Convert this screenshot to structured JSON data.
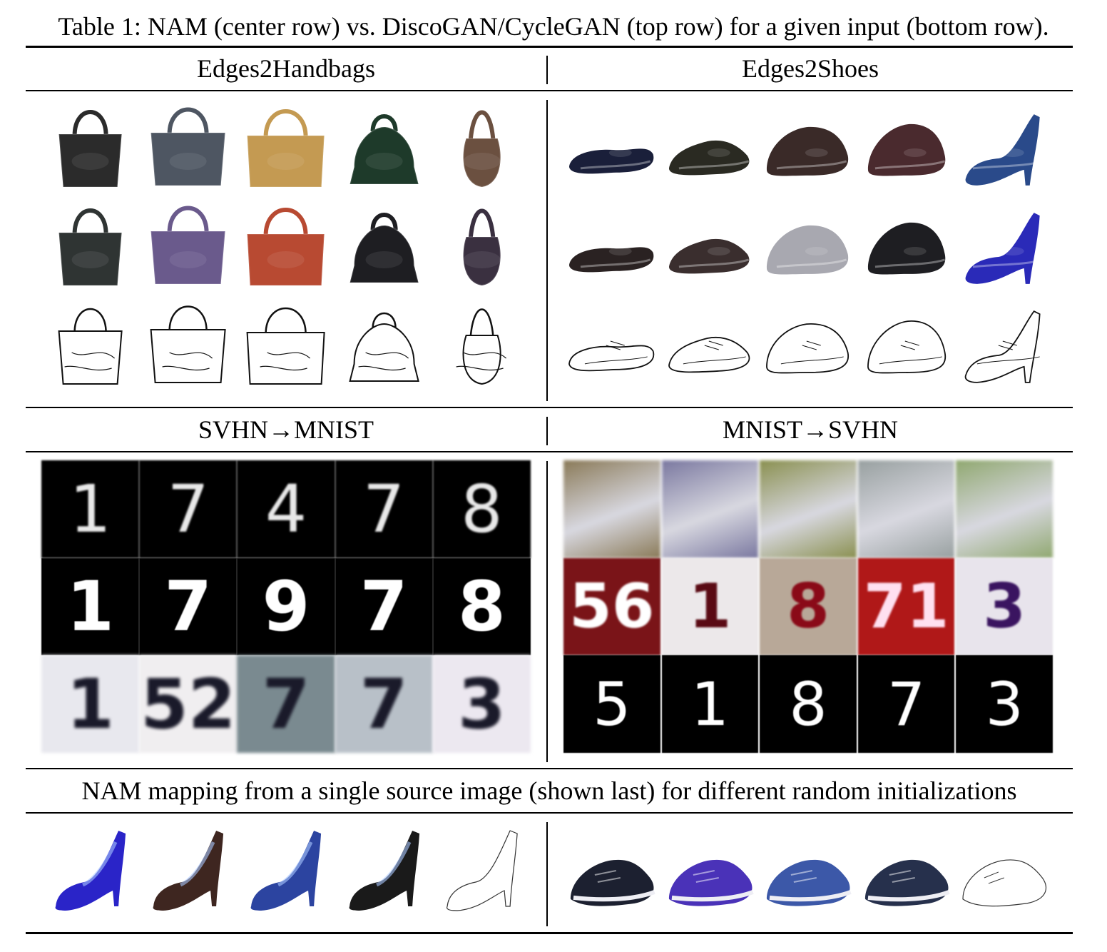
{
  "table": {
    "caption": "Table 1: NAM (center row) vs. DiscoGAN/CycleGAN (top row) for a given input (bottom row).",
    "sections": {
      "edges2handbags": {
        "title": "Edges2Handbags"
      },
      "edges2shoes": {
        "title": "Edges2Shoes"
      },
      "svhn2mnist": {
        "title": "SVHN→MNIST",
        "top_row": [
          "1",
          "7",
          "4",
          "7",
          "8"
        ],
        "center_row": [
          "1",
          "7",
          "9",
          "7",
          "8"
        ],
        "bottom_row": [
          "1",
          "52",
          "7",
          "7",
          "3"
        ]
      },
      "mnist2svhn": {
        "title": "MNIST→SVHN",
        "center_row": [
          "56",
          "1",
          "8",
          "71",
          "3"
        ],
        "bottom_row": [
          "5",
          "1",
          "8",
          "7",
          "3"
        ]
      },
      "random_init": {
        "title": "NAM mapping from a single source image (shown last) for different random initializations"
      }
    }
  },
  "colors": {
    "handbags_top": [
      "#2b2b2b",
      "#4e5662",
      "#c49a52",
      "#1e3a2a",
      "#6b5040"
    ],
    "handbags_center": [
      "#2f3433",
      "#6a5a8c",
      "#b84a32",
      "#1e1e22",
      "#3a3040"
    ],
    "shoes_top": [
      "#1a1f3a",
      "#2a2a22",
      "#3a2a28",
      "#4a2a2e",
      "#2a4a8a"
    ],
    "shoes_center": [
      "#2a2222",
      "#3a2e2e",
      "#a8a8b0",
      "#1e1e22",
      "#2a2ab8"
    ],
    "svhn_tiles": [
      "#8a7a58",
      "#7a78a0",
      "#8a9050",
      "#98a0a0",
      "#90a870"
    ],
    "svhn_center_bg": [
      "#7a1418",
      "#ece8ea",
      "#b8a898",
      "#b01818",
      "#e8e4ec"
    ],
    "svhn_center_fg": [
      "#ffffff",
      "#5a0a14",
      "#8a0a18",
      "#ffe0f0",
      "#3a1460"
    ],
    "svhn_input_bg": [
      "#e8e8ee",
      "#f0eef0",
      "#7a8a90",
      "#b8c0c8",
      "#ece8f0"
    ],
    "heels_row": [
      "#2a24c8",
      "#3e2620",
      "#2c44a0",
      "#1a1a1a"
    ],
    "sneakers_row": [
      "#1c2030",
      "#4a32b8",
      "#3c58a8",
      "#26304c"
    ]
  }
}
